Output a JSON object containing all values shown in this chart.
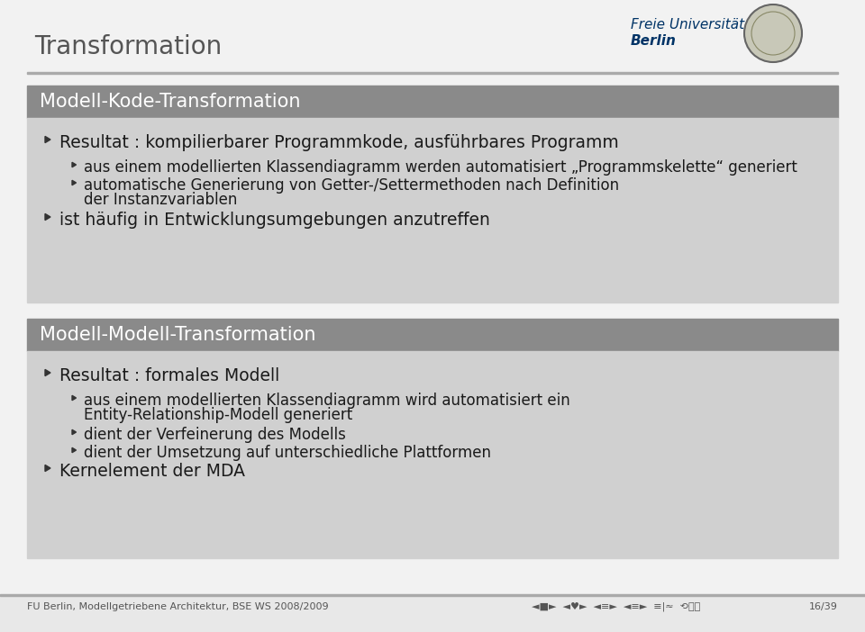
{
  "title": "Transformation",
  "slide_bg": "#f2f2f2",
  "title_color": "#555555",
  "title_fontsize": 20,
  "header_bg": "#8a8a8a",
  "header_text_color": "#ffffff",
  "header_fontsize": 15,
  "body_bg": "#d0d0d0",
  "body_text_color": "#1a1a1a",
  "footer_bg": "#e8e8e8",
  "footer_line_color": "#aaaaaa",
  "footer_text_color": "#555555",
  "footer_left": "FU Berlin, Modellgetriebene Architektur, BSE WS 2008/2009",
  "footer_right": "16/39",
  "footer_fontsize": 8,
  "section_line_color": "#aaaaaa",
  "arrow_color": "#333333",
  "section1_title": "Modell-Kode-Transformation",
  "section2_title": "Modell-Modell-Transformation",
  "section1_items": [
    {
      "level": 1,
      "text": "Resultat : kompilierbarer Programmkode, ausführbares Programm"
    },
    {
      "level": 2,
      "text": "aus einem modellierten Klassendiagramm werden automatisiert „Programmskelette“ generiert"
    },
    {
      "level": 2,
      "text": "automatische Generierung von Getter-/Settermethoden nach Definition\nder Instanzvariablen"
    },
    {
      "level": 1,
      "text": "ist häufig in Entwicklungsumgebungen anzutreffen"
    }
  ],
  "section2_items": [
    {
      "level": 1,
      "text": "Resultat : formales Modell"
    },
    {
      "level": 2,
      "text": "aus einem modellierten Klassendiagramm wird automatisiert ein\nEntity-Relationship-Modell generiert"
    },
    {
      "level": 2,
      "text": "dient der Verfeinerung des Modells"
    },
    {
      "level": 2,
      "text": "dient der Umsetzung auf unterschiedliche Plattformen"
    },
    {
      "level": 1,
      "text": "Kernelement der MDA"
    }
  ],
  "logo_text1": "Freie Universität",
  "logo_text2": "Berlin",
  "logo_text_color": "#003366"
}
